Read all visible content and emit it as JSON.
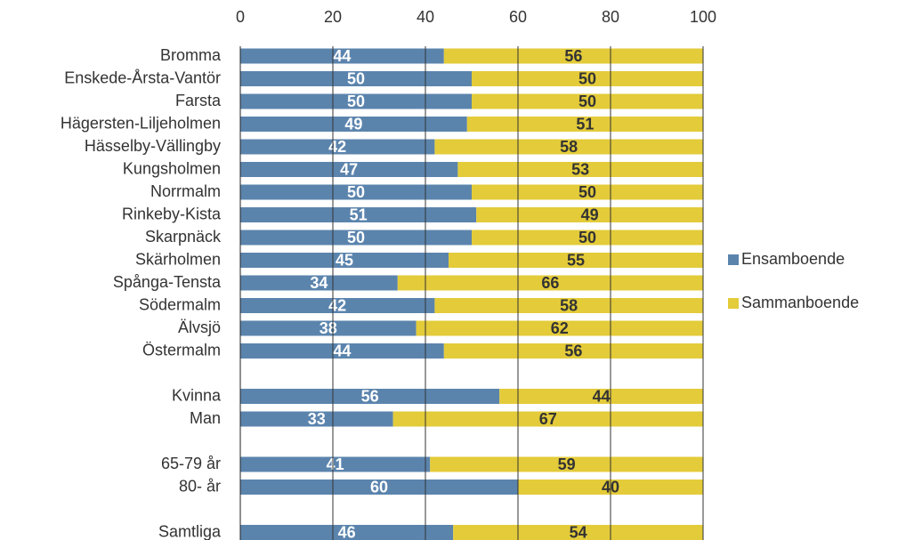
{
  "chart_data": {
    "type": "stacked_barh",
    "categories": [
      "Bromma",
      "Enskede-Årsta-Vantör",
      "Farsta",
      "Hägersten-Liljeholmen",
      "Hässelby-Vällingby",
      "Kungsholmen",
      "Norrmalm",
      "Rinkeby-Kista",
      "Skarpnäck",
      "Skärholmen",
      "Spånga-Tensta",
      "Södermalm",
      "Älvsjö",
      "Östermalm",
      null,
      "Kvinna",
      "Man",
      null,
      "65-79 år",
      "80- år",
      null,
      "Samtliga"
    ],
    "series": [
      {
        "name": "Ensamboende",
        "color": "#5b84ad",
        "values": [
          44,
          50,
          50,
          49,
          42,
          47,
          50,
          51,
          50,
          45,
          34,
          42,
          38,
          44,
          null,
          56,
          33,
          null,
          41,
          60,
          null,
          46
        ]
      },
      {
        "name": "Sammanboende",
        "color": "#e3cb3a",
        "values": [
          56,
          50,
          50,
          51,
          58,
          53,
          50,
          49,
          50,
          55,
          66,
          58,
          62,
          56,
          null,
          44,
          67,
          null,
          59,
          40,
          null,
          54
        ]
      }
    ],
    "xlim": [
      0,
      100
    ],
    "xticks": [
      0,
      20,
      40,
      60,
      80,
      100
    ],
    "grid": true,
    "legend": "right"
  }
}
